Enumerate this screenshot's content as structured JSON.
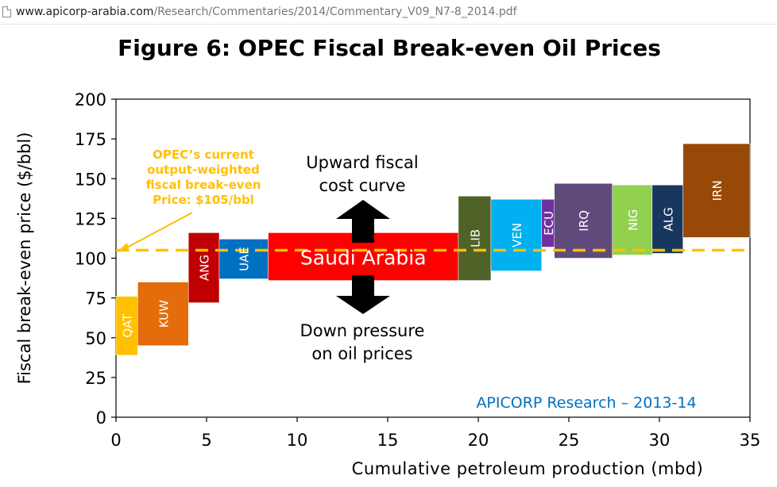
{
  "browser": {
    "url_host": "www.apicorp-arabia.com",
    "url_path": "/Research/Commentaries/2014/Commentary_V09_N7-8_2014.pdf"
  },
  "chart_data": {
    "type": "bar",
    "title": "Figure 6: OPEC Fiscal Break-even Oil Prices",
    "xlabel": "Cumulative petroleum production (mbd)",
    "ylabel": "Fiscal break-even price ($/bbl)",
    "xlim": [
      0,
      35
    ],
    "ylim": [
      0,
      200
    ],
    "xticks": [
      0,
      5,
      10,
      15,
      20,
      25,
      30,
      35
    ],
    "yticks": [
      0,
      25,
      50,
      75,
      100,
      125,
      150,
      175,
      200
    ],
    "grid": false,
    "bars": [
      {
        "label": "QAT",
        "x0": 0.0,
        "x1": 1.2,
        "y0": 39,
        "y1": 76,
        "color": "#FFC000",
        "rotate": true
      },
      {
        "label": "KUW",
        "x0": 1.2,
        "x1": 4.0,
        "y0": 45,
        "y1": 85,
        "color": "#E46C0A",
        "rotate": true
      },
      {
        "label": "ANG",
        "x0": 4.0,
        "x1": 5.7,
        "y0": 72,
        "y1": 116,
        "color": "#C00000",
        "rotate": true
      },
      {
        "label": "UAE",
        "x0": 5.7,
        "x1": 8.4,
        "y0": 87,
        "y1": 112,
        "color": "#0070C0",
        "rotate": true
      },
      {
        "label": "Saudi Arabia",
        "x0": 8.4,
        "x1": 18.9,
        "y0": 86,
        "y1": 116,
        "color": "#FF0000",
        "rotate": false
      },
      {
        "label": "LIB",
        "x0": 18.9,
        "x1": 20.7,
        "y0": 86,
        "y1": 139,
        "color": "#4F6228",
        "rotate": true
      },
      {
        "label": "VEN",
        "x0": 20.7,
        "x1": 23.5,
        "y0": 92,
        "y1": 137,
        "color": "#00B0F0",
        "rotate": true
      },
      {
        "label": "ECU",
        "x0": 23.5,
        "x1": 24.2,
        "y0": 107,
        "y1": 137,
        "color": "#7030A0",
        "rotate": true
      },
      {
        "label": "IRQ",
        "x0": 24.2,
        "x1": 27.4,
        "y0": 100,
        "y1": 147,
        "color": "#604A7B",
        "rotate": true
      },
      {
        "label": "NIG",
        "x0": 27.4,
        "x1": 29.6,
        "y0": 102,
        "y1": 146,
        "color": "#92D050",
        "rotate": true
      },
      {
        "label": "ALG",
        "x0": 29.6,
        "x1": 31.3,
        "y0": 103,
        "y1": 146,
        "color": "#17375E",
        "rotate": true
      },
      {
        "label": "IRN",
        "x0": 31.3,
        "x1": 35.0,
        "y0": 113,
        "y1": 172,
        "color": "#984807",
        "rotate": true
      }
    ],
    "reference_line": {
      "value": 105,
      "color": "#FFC000",
      "style": "dashed"
    },
    "annotations": {
      "opec_lines": [
        "OPEC’s current",
        "output-weighted",
        "fiscal break-even",
        "Price: $105/bbl"
      ],
      "opec_color": "#FFC000",
      "upward_lines": [
        "Upward fiscal",
        "cost curve"
      ],
      "down_lines": [
        "Down pressure",
        "on oil prices"
      ],
      "credit": "APICORP Research – 2013-14",
      "credit_color": "#0070C0"
    }
  }
}
